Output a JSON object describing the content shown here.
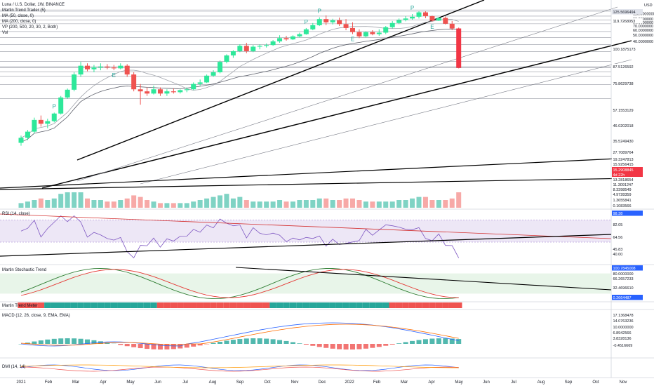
{
  "header": {
    "symbol_line": "Luna / U.S. Dollar, 1W, BINANCE",
    "indicators": [
      "Martin Trend Trader (5)",
      "MA (50, close, 0)",
      "MA (200, close, 0)",
      "VP (200, 500, 20, 30, 2, Both)",
      "Vol"
    ]
  },
  "price_axis": {
    "unit": "USD",
    "ticks": [
      "110.0000000",
      "90.0000000",
      "80.0000000",
      "70.0000000",
      "60.0000000",
      "50.0000000",
      "40.0000000"
    ],
    "price_labels": [
      {
        "text": "125.5696494",
        "bg": "#e0e3eb",
        "fg": "#131722"
      },
      {
        "text": "119.7268053",
        "bg": "#ffffff",
        "fg": "#131722"
      },
      {
        "text": "100.1875173",
        "bg": "#ffffff",
        "fg": "#131722"
      },
      {
        "text": "87.5126592",
        "bg": "#ffffff",
        "fg": "#131722"
      },
      {
        "text": "75.8629738",
        "bg": "#ffffff",
        "fg": "#131722"
      },
      {
        "text": "57.1553129",
        "bg": "#ffffff",
        "fg": "#131722"
      },
      {
        "text": "46.0202018",
        "bg": "#ffffff",
        "fg": "#131722"
      },
      {
        "text": "35.5249430",
        "bg": "#ffffff",
        "fg": "#131722"
      },
      {
        "text": "27.7089764",
        "bg": "#ffffff",
        "fg": "#131722"
      },
      {
        "text": "19.3247813",
        "bg": "#ffffff",
        "fg": "#131722"
      },
      {
        "text": "15.9256415",
        "bg": "#ffffff",
        "fg": "#131722"
      },
      {
        "text": "15.2908845",
        "bg": "#f23645",
        "fg": "#ffffff"
      },
      {
        "text": "4d 22h",
        "bg": "#f23645",
        "fg": "#ffffff"
      },
      {
        "text": "13.2818654",
        "bg": "#ffffff",
        "fg": "#131722"
      },
      {
        "text": "11.3091247",
        "bg": "#ffffff",
        "fg": "#131722"
      },
      {
        "text": "8.3398549",
        "bg": "#ffffff",
        "fg": "#131722"
      },
      {
        "text": "4.9728359",
        "bg": "#ffffff",
        "fg": "#131722"
      },
      {
        "text": "1.3655841",
        "bg": "#ffffff",
        "fg": "#131722"
      },
      {
        "text": "0.1083566",
        "bg": "#ffffff",
        "fg": "#131722"
      }
    ]
  },
  "panes": {
    "rsi": {
      "title": "RSI (14, close)",
      "labels": [
        {
          "text": "98.38",
          "bg": "#2962ff",
          "fg": "#ffffff"
        },
        {
          "text": "82.05",
          "bg": "#ffffff",
          "fg": "#131722"
        },
        {
          "text": "64.56",
          "bg": "#ffffff",
          "fg": "#131722"
        },
        {
          "text": "45.83",
          "bg": "#ffffff",
          "fg": "#131722"
        },
        {
          "text": "40.00",
          "bg": "#ffffff",
          "fg": "#131722"
        }
      ]
    },
    "stoch": {
      "title": "Martin Stochastic Trend",
      "labels": [
        {
          "text": "100.7845008",
          "bg": "#2962ff",
          "fg": "#ffffff"
        },
        {
          "text": "80.0000000",
          "bg": "#ffffff",
          "fg": "#131722"
        },
        {
          "text": "66.2657233",
          "bg": "#ffffff",
          "fg": "#131722"
        },
        {
          "text": "32.4696610",
          "bg": "#ffffff",
          "fg": "#131722"
        },
        {
          "text": "0.2664487",
          "bg": "#2962ff",
          "fg": "#ffffff"
        }
      ]
    },
    "meter": {
      "title": "Martin Trend Meter"
    },
    "macd": {
      "title": "MACD (12, 26, close, 9, EMA, EMA)",
      "labels": [
        {
          "text": "17.1368478",
          "bg": "#ffffff",
          "fg": "#131722"
        },
        {
          "text": "14.0763236",
          "bg": "#ffffff",
          "fg": "#131722"
        },
        {
          "text": "10.0000000",
          "bg": "#ffffff",
          "fg": "#131722"
        },
        {
          "text": "6.8942566",
          "bg": "#ffffff",
          "fg": "#131722"
        },
        {
          "text": "3.8328136",
          "bg": "#ffffff",
          "fg": "#131722"
        },
        {
          "text": "-0.4516669",
          "bg": "#ffffff",
          "fg": "#131722"
        }
      ]
    },
    "dmi": {
      "title": "DMI (14, 14)"
    }
  },
  "time_axis": [
    "2021",
    "Feb",
    "Mar",
    "Apr",
    "May",
    "Jun",
    "Jul",
    "Aug",
    "Sep",
    "Oct",
    "Nov",
    "Dec",
    "2022",
    "Feb",
    "Mar",
    "Apr",
    "May",
    "Jun",
    "Jul",
    "Aug",
    "Sep",
    "Oct",
    "Nov"
  ],
  "markers": {
    "p": "P",
    "e": "E"
  },
  "colors": {
    "up": "#26c2a0",
    "down": "#ef5350",
    "up_bright": "#2ee89a",
    "down_bright": "#f23645",
    "rsi_band": "#ede7f6",
    "stoch_band": "#e8f5e9"
  },
  "chart_data": {
    "type": "candlestick",
    "timeframe": "1W",
    "y_scale": "log",
    "candles": [
      [
        1.0,
        1.3,
        0.9,
        1.2
      ],
      [
        1.2,
        1.6,
        1.1,
        1.5
      ],
      [
        1.5,
        2.5,
        1.4,
        2.3
      ],
      [
        2.3,
        2.7,
        1.8,
        2.0
      ],
      [
        2.0,
        2.4,
        1.7,
        2.2
      ],
      [
        2.2,
        3.0,
        2.1,
        2.9
      ],
      [
        2.9,
        5.5,
        2.8,
        5.2
      ],
      [
        5.2,
        7.2,
        5.0,
        6.9
      ],
      [
        6.9,
        13.0,
        6.5,
        12.0
      ],
      [
        12.0,
        19.0,
        11.0,
        16.5
      ],
      [
        16.5,
        18.0,
        13.5,
        14.5
      ],
      [
        14.5,
        17.0,
        13.0,
        15.5
      ],
      [
        15.5,
        18.0,
        14.0,
        16.0
      ],
      [
        16.0,
        17.5,
        14.5,
        15.5
      ],
      [
        15.5,
        17.0,
        14.0,
        15.0
      ],
      [
        15.0,
        18.0,
        14.5,
        16.5
      ],
      [
        16.5,
        17.5,
        11.0,
        12.0
      ],
      [
        12.0,
        13.0,
        6.5,
        7.0
      ],
      [
        7.0,
        8.5,
        4.0,
        6.5
      ],
      [
        6.5,
        7.5,
        5.5,
        6.0
      ],
      [
        6.0,
        8.0,
        5.8,
        7.0
      ],
      [
        7.0,
        7.5,
        5.5,
        6.0
      ],
      [
        6.0,
        7.0,
        5.5,
        6.5
      ],
      [
        6.5,
        7.2,
        6.0,
        6.3
      ],
      [
        6.3,
        7.0,
        6.0,
        6.8
      ],
      [
        6.8,
        7.5,
        6.3,
        7.0
      ],
      [
        7.0,
        9.0,
        6.8,
        8.5
      ],
      [
        8.5,
        10.0,
        8.0,
        9.0
      ],
      [
        9.0,
        12.0,
        8.8,
        11.5
      ],
      [
        11.5,
        14.0,
        11.0,
        13.0
      ],
      [
        13.0,
        20.0,
        12.5,
        19.0
      ],
      [
        19.0,
        25.0,
        18.0,
        24.0
      ],
      [
        24.0,
        29.0,
        22.0,
        28.0
      ],
      [
        28.0,
        36.0,
        27.0,
        34.0
      ],
      [
        34.0,
        38.0,
        26.0,
        28.0
      ],
      [
        28.0,
        35.0,
        27.0,
        33.0
      ],
      [
        33.0,
        36.0,
        30.0,
        34.0
      ],
      [
        34.0,
        37.0,
        32.0,
        35.0
      ],
      [
        35.0,
        42.0,
        34.0,
        40.0
      ],
      [
        40.0,
        50.0,
        38.0,
        45.0
      ],
      [
        45.0,
        49.0,
        41.0,
        43.0
      ],
      [
        43.0,
        50.0,
        42.0,
        48.0
      ],
      [
        48.0,
        55.0,
        46.0,
        52.0
      ],
      [
        52.0,
        65.0,
        51.0,
        62.0
      ],
      [
        62.0,
        78.0,
        60.0,
        72.0
      ],
      [
        72.0,
        96.0,
        70.0,
        90.0
      ],
      [
        90.0,
        103.0,
        72.0,
        80.0
      ],
      [
        80.0,
        91.0,
        74.0,
        86.0
      ],
      [
        86.0,
        95.0,
        70.0,
        75.0
      ],
      [
        75.0,
        90.0,
        60.0,
        65.0
      ],
      [
        65.0,
        80.0,
        52.0,
        56.0
      ],
      [
        56.0,
        62.0,
        45.0,
        48.0
      ],
      [
        48.0,
        58.0,
        46.0,
        56.0
      ],
      [
        56.0,
        60.0,
        50.0,
        52.0
      ],
      [
        52.0,
        62.0,
        49.0,
        55.0
      ],
      [
        55.0,
        70.0,
        52.0,
        67.0
      ],
      [
        67.0,
        84.0,
        64.0,
        78.0
      ],
      [
        78.0,
        92.0,
        75.0,
        87.0
      ],
      [
        87.0,
        100.0,
        83.0,
        92.0
      ],
      [
        92.0,
        108.0,
        88.0,
        98.0
      ],
      [
        98.0,
        119.7,
        92.0,
        115.0
      ],
      [
        115.0,
        119.7,
        93.0,
        100.0
      ],
      [
        100.0,
        102.0,
        82.0,
        85.0
      ],
      [
        85.0,
        96.0,
        84.0,
        94.0
      ],
      [
        94.0,
        99.0,
        74.0,
        76.0
      ],
      [
        76.0,
        84.0,
        60.0,
        64.0
      ],
      [
        64.0,
        66.0,
        15.0,
        15.29
      ]
    ],
    "volume": [
      0.3,
      0.4,
      0.5,
      0.6,
      0.5,
      0.6,
      0.9,
      1.0,
      1.0,
      1.0,
      0.6,
      0.5,
      0.5,
      0.4,
      0.4,
      0.5,
      0.6,
      0.8,
      0.7,
      0.5,
      0.4,
      0.3,
      0.3,
      0.3,
      0.3,
      0.3,
      0.4,
      0.5,
      0.6,
      0.7,
      0.8,
      0.9,
      0.6,
      0.7,
      0.5,
      0.4,
      0.4,
      0.4,
      0.4,
      0.5,
      0.4,
      0.4,
      0.5,
      0.5,
      0.5,
      0.6,
      0.6,
      0.5,
      0.5,
      0.6,
      0.6,
      0.5,
      0.4,
      0.4,
      0.4,
      0.4,
      0.4,
      0.5,
      0.5,
      0.6,
      0.7,
      0.7,
      0.5,
      0.5,
      0.5,
      0.6,
      1.0
    ],
    "rsi_bands": {
      "upper": 82.05,
      "lower": 40.0
    },
    "price_levels": [
      125.5696494,
      119.7268053,
      100.1875173,
      87.5126592,
      75.8629738,
      57.1553129,
      46.0202018,
      35.524943,
      27.7089764,
      19.3247813,
      15.9256415,
      15.2908845,
      13.2818654,
      11.3091247,
      8.3398549,
      4.9728359,
      1.3655841,
      0.1083566
    ]
  }
}
